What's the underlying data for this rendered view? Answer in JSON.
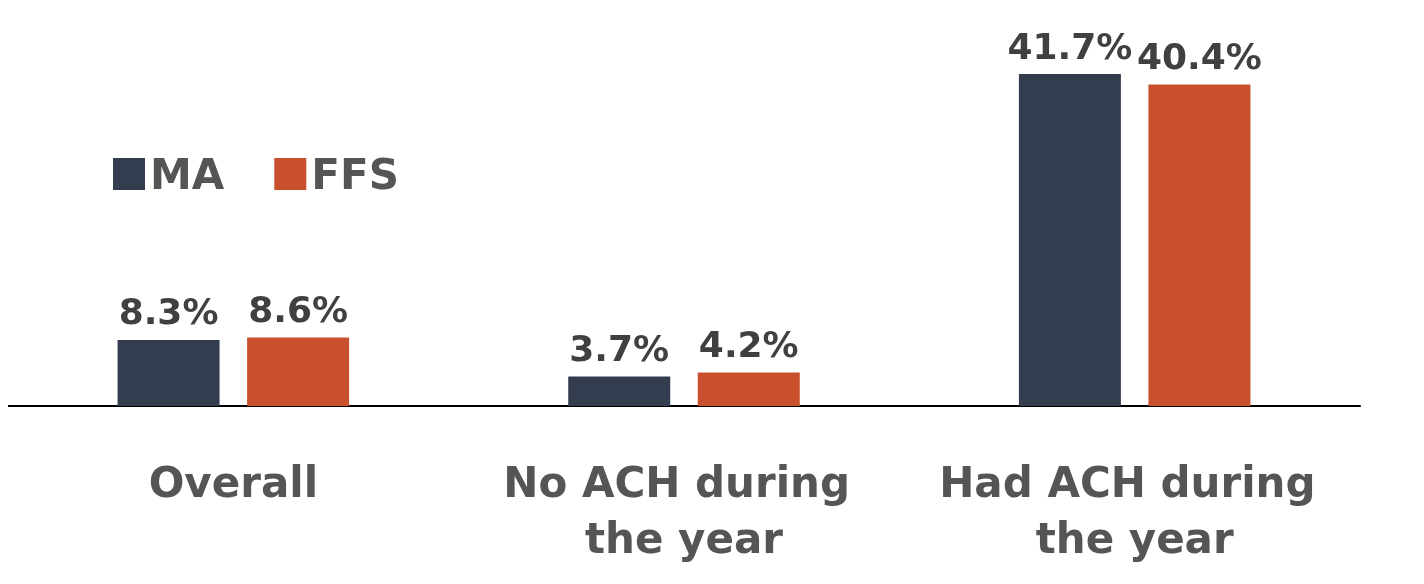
{
  "chart_data": {
    "type": "bar",
    "categories": [
      "Overall",
      "No ACH during the year",
      "Had ACH during the year"
    ],
    "series": [
      {
        "name": "MA",
        "color": "#333d4f",
        "values": [
          8.3,
          3.7,
          41.7
        ],
        "value_labels": [
          "8.3%",
          "3.7%",
          "41.7%"
        ]
      },
      {
        "name": "FFS",
        "color": "#c8502c",
        "values": [
          8.6,
          4.2,
          40.4
        ],
        "value_labels": [
          "8.6%",
          "4.2%",
          "40.4%"
        ]
      }
    ],
    "legend": "top left",
    "grid": false
  }
}
